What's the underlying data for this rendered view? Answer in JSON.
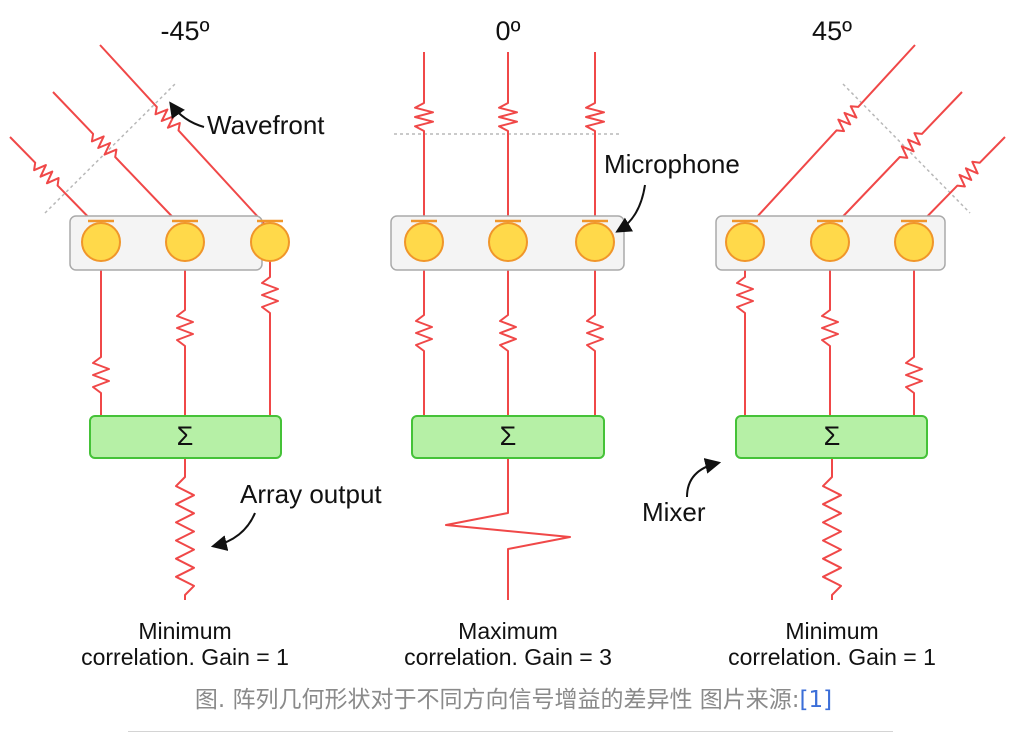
{
  "panels": [
    {
      "angle_label": "-45º",
      "result_line1": "Minimum",
      "result_line2": "correlation. Gain = 1"
    },
    {
      "angle_label": "0º",
      "result_line1": "Maximum",
      "result_line2": "correlation. Gain = 3"
    },
    {
      "angle_label": "45º",
      "result_line1": "Minimum",
      "result_line2": "correlation. Gain = 1"
    }
  ],
  "mixer_symbol": "Σ",
  "annotations": {
    "wavefront": "Wavefront",
    "microphone": "Microphone",
    "array_output": "Array output",
    "mixer": "Mixer"
  },
  "caption": {
    "text": "图. 阵列几何形状对于不同方向信号增益的差异性 图片来源:",
    "reference": "[1]"
  },
  "colors": {
    "signal": "#f04848",
    "mic_fill": "#ffd94a",
    "mic_stroke": "#f0962a",
    "mixer_fill": "#b6f0a6",
    "mixer_stroke": "#45c238",
    "array_box_fill": "#f4f4f4",
    "array_box_stroke": "#aaaaaa",
    "wavefront_line": "#b8b8b8",
    "caption_text": "#8a8a8a",
    "caption_link": "#3b6ed8"
  }
}
